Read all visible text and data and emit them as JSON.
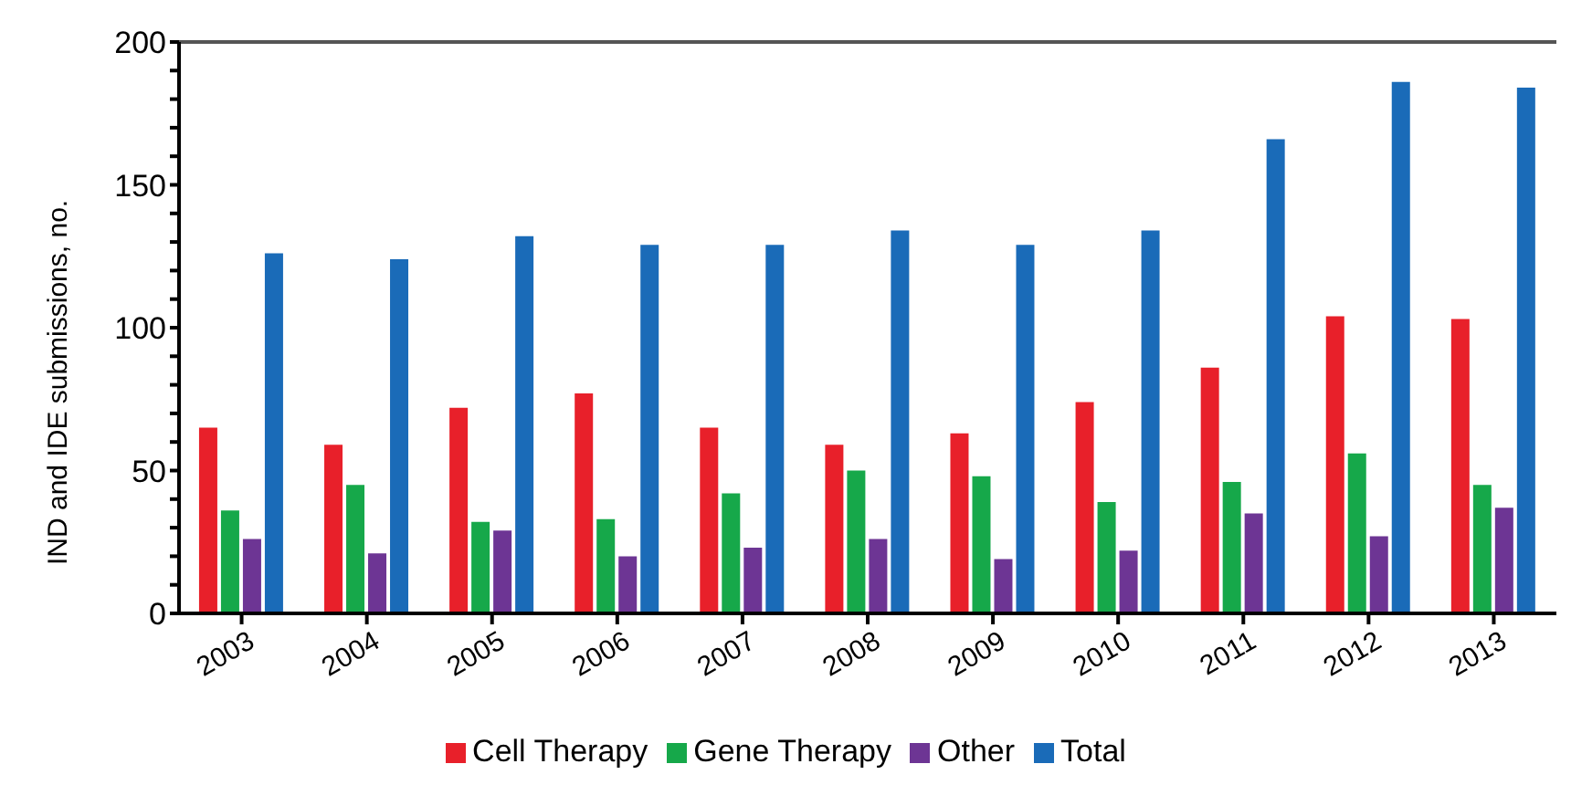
{
  "chart_data": {
    "type": "bar",
    "ylabel": "IND and IDE submissions, no.",
    "categories": [
      "2003",
      "2004",
      "2005",
      "2006",
      "2007",
      "2008",
      "2009",
      "2010",
      "2011",
      "2012",
      "2013"
    ],
    "series": [
      {
        "name": "Cell Therapy",
        "color": "#e8202a",
        "values": [
          65,
          59,
          72,
          77,
          65,
          59,
          63,
          74,
          86,
          104,
          103
        ]
      },
      {
        "name": "Gene Therapy",
        "color": "#16a84a",
        "values": [
          36,
          45,
          32,
          33,
          42,
          50,
          48,
          39,
          46,
          56,
          45
        ]
      },
      {
        "name": "Other",
        "color": "#6d3594",
        "values": [
          26,
          21,
          29,
          20,
          23,
          26,
          19,
          22,
          35,
          27,
          37
        ]
      },
      {
        "name": "Total",
        "color": "#1a6bb8",
        "values": [
          126,
          124,
          132,
          129,
          129,
          134,
          129,
          134,
          166,
          186,
          184
        ]
      }
    ],
    "ylim": [
      0,
      200
    ],
    "yticks": [
      0,
      {
        "value": 10,
        "label": null
      },
      {
        "value": 20,
        "label": null
      },
      {
        "value": 30,
        "label": null
      },
      {
        "value": 40,
        "label": null
      },
      50,
      {
        "value": 60,
        "label": null
      },
      {
        "value": 70,
        "label": null
      },
      {
        "value": 80,
        "label": null
      },
      {
        "value": 90,
        "label": null
      },
      100,
      {
        "value": 110,
        "label": null
      },
      {
        "value": 120,
        "label": null
      },
      {
        "value": 130,
        "label": null
      },
      {
        "value": 140,
        "label": null
      },
      150,
      {
        "value": 160,
        "label": null
      },
      {
        "value": 170,
        "label": null
      },
      {
        "value": 180,
        "label": null
      },
      {
        "value": 190,
        "label": null
      },
      200
    ],
    "grid": false,
    "legend": "bottom"
  }
}
